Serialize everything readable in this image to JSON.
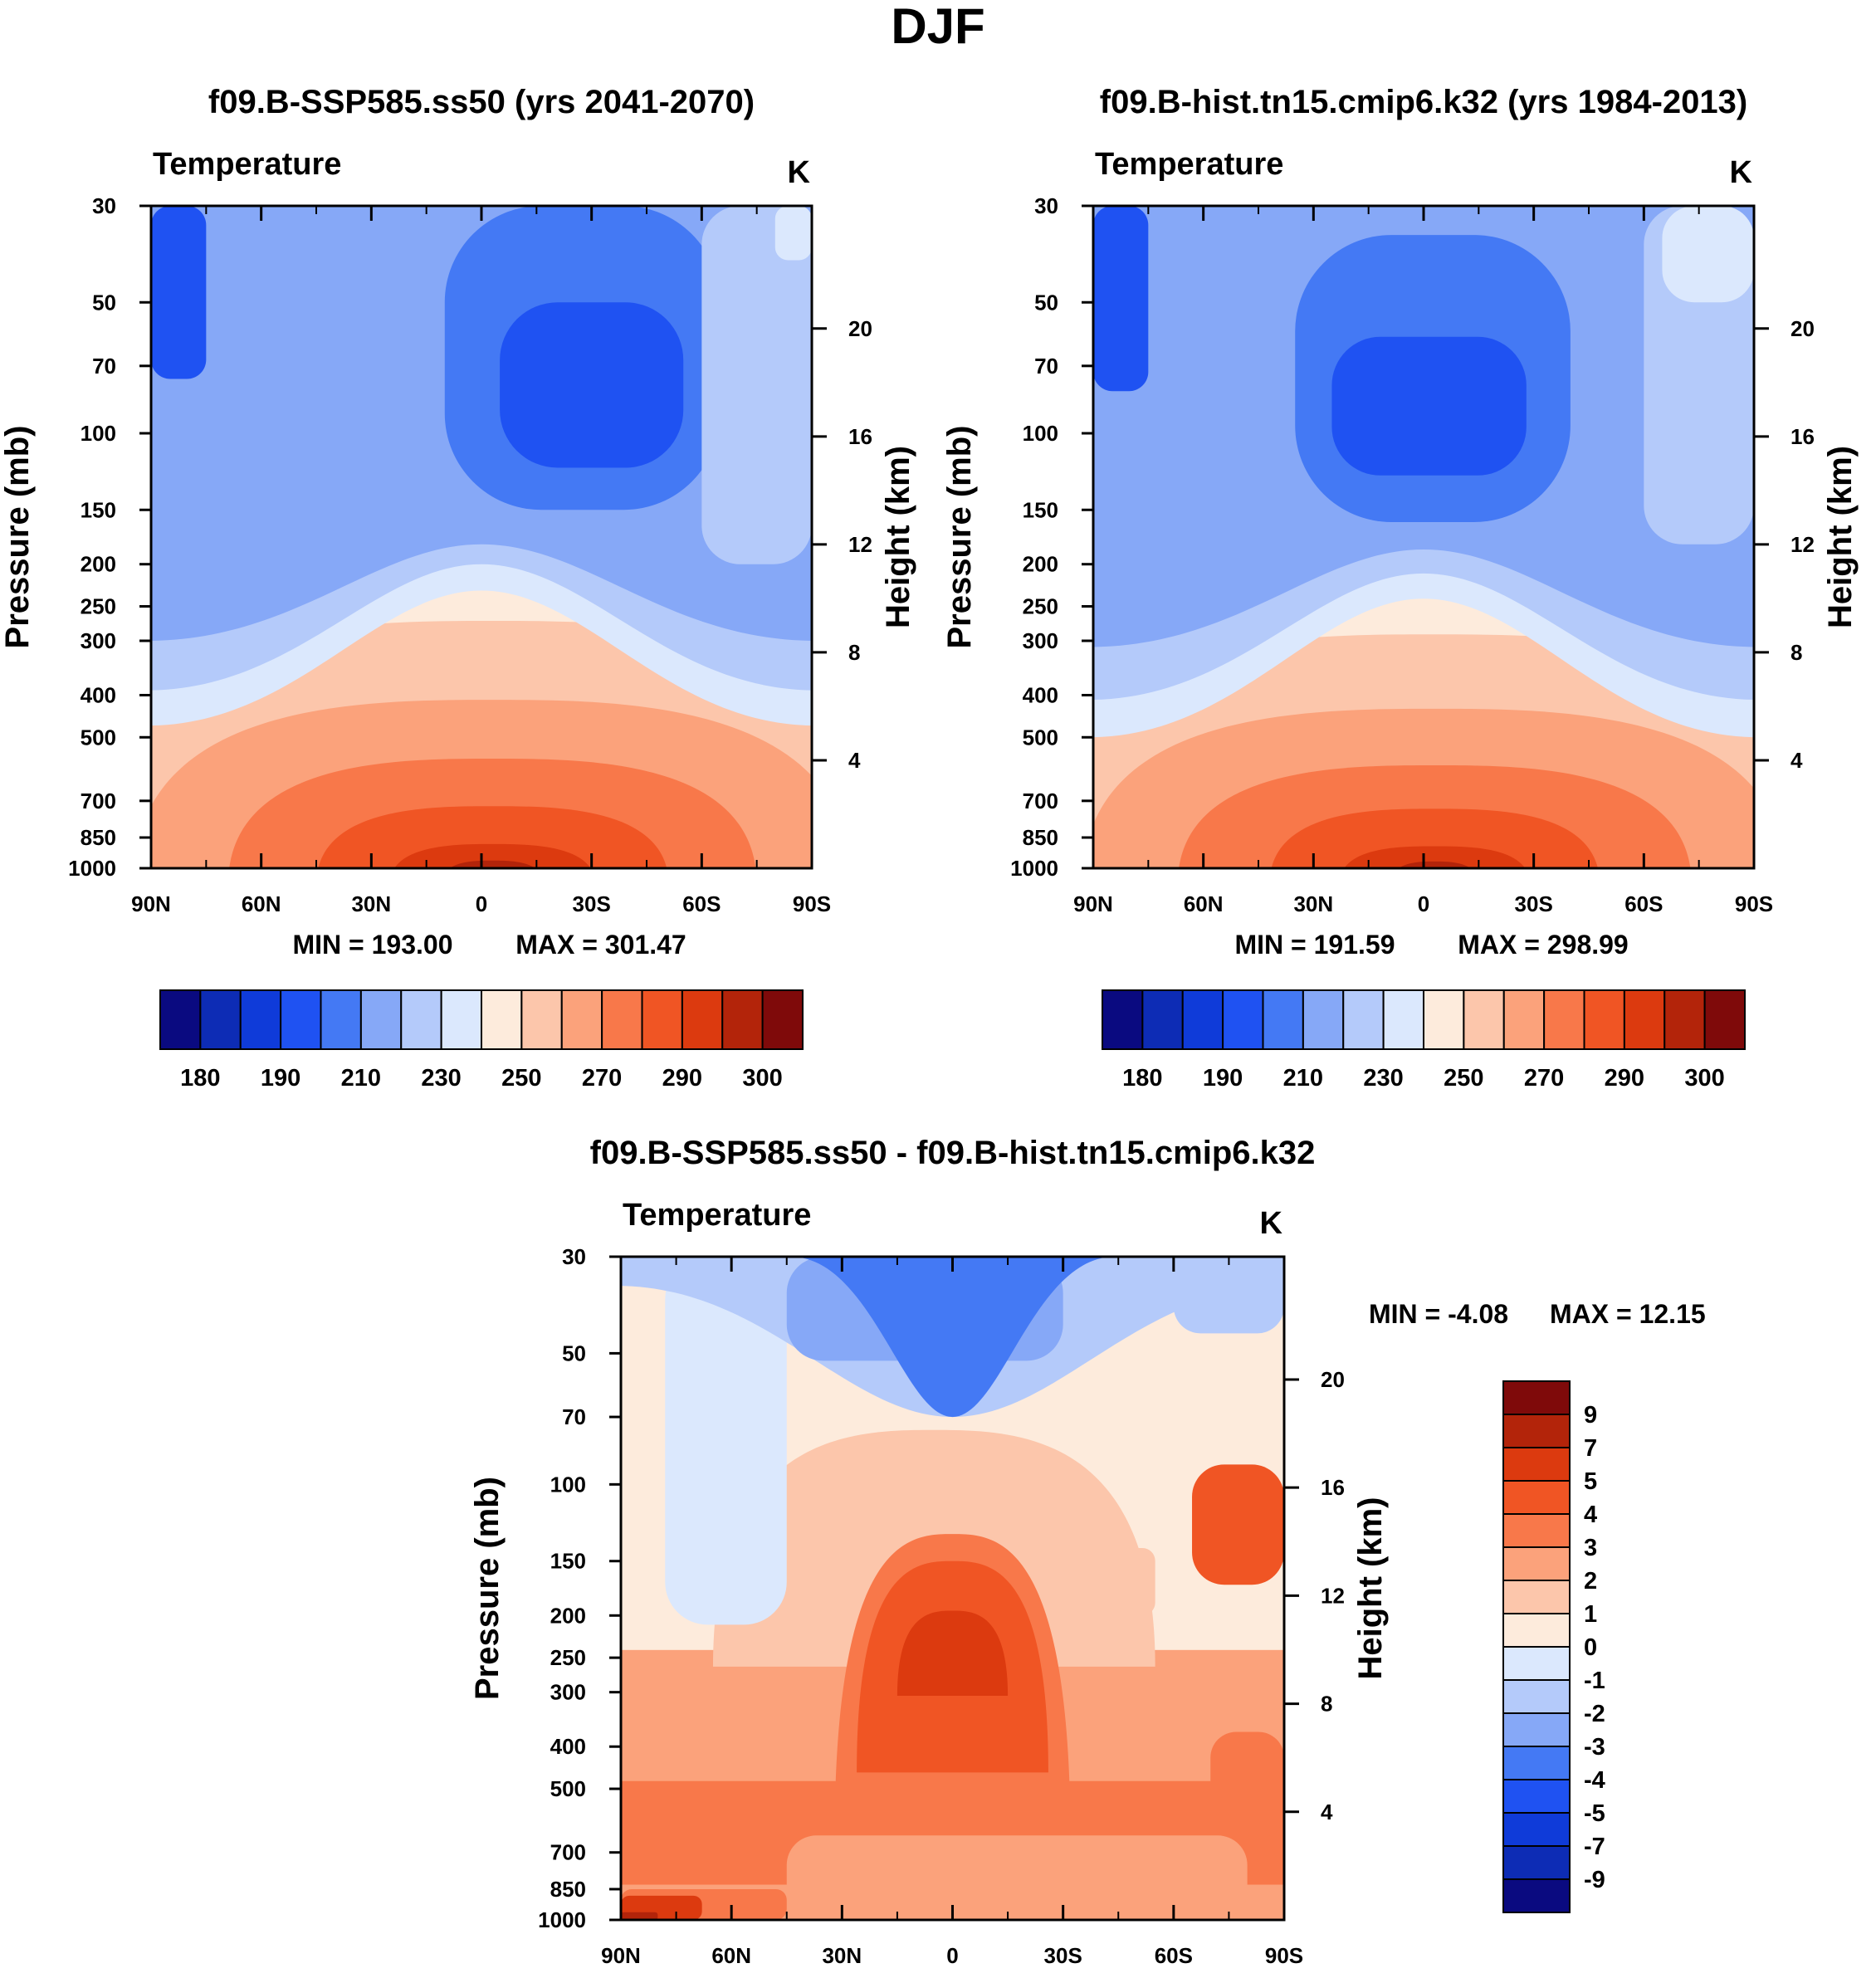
{
  "page_title": "DJF",
  "colors": {
    "temperature_levels": [
      "#0a0a80",
      "#0d2cb5",
      "#0f3bd9",
      "#1f52f2",
      "#4479f4",
      "#86a8f7",
      "#b4cafa",
      "#dbe8fd",
      "#fdebdc",
      "#fcc6ab",
      "#fba27b",
      "#f8784a",
      "#f05524",
      "#dc3a0f",
      "#b3240a",
      "#7f0a0a"
    ],
    "difference_levels": [
      "#0a0a80",
      "#0d2cb5",
      "#0f3bd9",
      "#1f52f2",
      "#4479f4",
      "#86a8f7",
      "#b4cafa",
      "#dbe8fd",
      "#fdebdc",
      "#fcc6ab",
      "#fba27b",
      "#f8784a",
      "#f05524",
      "#dc3a0f",
      "#b3240a",
      "#7f0a0a"
    ]
  },
  "chart_data": [
    {
      "type": "heatmap",
      "title": "f09.B-SSP585.ss50 (yrs 2041-2070)",
      "variable": "Temperature",
      "units": "K",
      "xlabel": "",
      "ylabel": "Pressure (mb)",
      "y2label": "Height (km)",
      "x_ticks": [
        "90N",
        "60N",
        "30N",
        "0",
        "30S",
        "60S",
        "90S"
      ],
      "x_values": [
        90,
        60,
        30,
        0,
        -30,
        -60,
        -90
      ],
      "y_ticks": [
        30,
        50,
        70,
        100,
        150,
        200,
        250,
        300,
        400,
        500,
        700,
        850,
        1000
      ],
      "y2_ticks": [
        20,
        16,
        12,
        8,
        4
      ],
      "ylim": [
        1000,
        30
      ],
      "min_label": "MIN = 193.00",
      "max_label": "MAX = 301.47",
      "min": 193.0,
      "max": 301.47,
      "colorbar_labels": [
        "180",
        "190",
        "210",
        "230",
        "250",
        "270",
        "290",
        "300"
      ],
      "regions": [
        {
          "level": 8,
          "kind": "band",
          "lat_min": -90,
          "lat_max": 90,
          "p_top": 30,
          "p_bot": 1000
        },
        {
          "level": 9,
          "kind": "dome",
          "center_lat": -3,
          "half_width": 118,
          "p_top": 270,
          "p_bot": 1000
        },
        {
          "level": 10,
          "kind": "dome",
          "center_lat": -3,
          "half_width": 98,
          "p_top": 410,
          "p_bot": 1000
        },
        {
          "level": 11,
          "kind": "dome",
          "center_lat": -3,
          "half_width": 72,
          "p_top": 560,
          "p_bot": 1000
        },
        {
          "level": 12,
          "kind": "dome",
          "center_lat": -3,
          "half_width": 48,
          "p_top": 720,
          "p_bot": 1000
        },
        {
          "level": 13,
          "kind": "dome",
          "center_lat": -3,
          "half_width": 28,
          "p_top": 880,
          "p_bot": 1000
        },
        {
          "level": 14,
          "kind": "dome",
          "center_lat": -3,
          "half_width": 14,
          "p_top": 960,
          "p_bot": 1000
        },
        {
          "level": 7,
          "kind": "cap",
          "p_bot_edge": 470,
          "p_bot_mid": 230
        },
        {
          "level": 6,
          "kind": "cap",
          "p_bot_edge": 390,
          "p_bot_mid": 200
        },
        {
          "level": 5,
          "kind": "cap",
          "p_bot_edge": 300,
          "p_bot_mid": 180
        },
        {
          "level": 4,
          "kind": "cell",
          "lat_min": 10,
          "lat_max": -65,
          "p_top": 30,
          "p_bot": 150
        },
        {
          "level": 3,
          "kind": "cell",
          "lat_min": -5,
          "lat_max": -55,
          "p_top": 50,
          "p_bot": 120
        },
        {
          "level": 3,
          "kind": "cell",
          "lat_min": 90,
          "lat_max": 75,
          "p_top": 30,
          "p_bot": 75
        },
        {
          "level": 6,
          "kind": "cell",
          "lat_min": -60,
          "lat_max": -90,
          "p_top": 30,
          "p_bot": 200
        },
        {
          "level": 7,
          "kind": "cell",
          "lat_min": -80,
          "lat_max": -90,
          "p_top": 30,
          "p_bot": 40
        }
      ]
    },
    {
      "type": "heatmap",
      "title": "f09.B-hist.tn15.cmip6.k32 (yrs 1984-2013)",
      "variable": "Temperature",
      "units": "K",
      "xlabel": "",
      "ylabel": "Pressure (mb)",
      "y2label": "Height (km)",
      "x_ticks": [
        "90N",
        "60N",
        "30N",
        "0",
        "30S",
        "60S",
        "90S"
      ],
      "x_values": [
        90,
        60,
        30,
        0,
        -30,
        -60,
        -90
      ],
      "y_ticks": [
        30,
        50,
        70,
        100,
        150,
        200,
        250,
        300,
        400,
        500,
        700,
        850,
        1000
      ],
      "y2_ticks": [
        20,
        16,
        12,
        8,
        4
      ],
      "ylim": [
        1000,
        30
      ],
      "min_label": "MIN = 191.59",
      "max_label": "MAX = 298.99",
      "min": 191.59,
      "max": 298.99,
      "colorbar_labels": [
        "180",
        "190",
        "210",
        "230",
        "250",
        "270",
        "290",
        "300"
      ],
      "regions": [
        {
          "level": 8,
          "kind": "band",
          "lat_min": -90,
          "lat_max": 90,
          "p_top": 30,
          "p_bot": 1000
        },
        {
          "level": 9,
          "kind": "dome",
          "center_lat": -3,
          "half_width": 118,
          "p_top": 290,
          "p_bot": 1000
        },
        {
          "level": 10,
          "kind": "dome",
          "center_lat": -3,
          "half_width": 96,
          "p_top": 430,
          "p_bot": 1000
        },
        {
          "level": 11,
          "kind": "dome",
          "center_lat": -3,
          "half_width": 70,
          "p_top": 580,
          "p_bot": 1000
        },
        {
          "level": 12,
          "kind": "dome",
          "center_lat": -3,
          "half_width": 45,
          "p_top": 730,
          "p_bot": 1000
        },
        {
          "level": 13,
          "kind": "dome",
          "center_lat": -3,
          "half_width": 26,
          "p_top": 890,
          "p_bot": 1000
        },
        {
          "level": 14,
          "kind": "dome",
          "center_lat": -3,
          "half_width": 12,
          "p_top": 965,
          "p_bot": 1000
        },
        {
          "level": 7,
          "kind": "cap",
          "p_bot_edge": 500,
          "p_bot_mid": 240
        },
        {
          "level": 6,
          "kind": "cap",
          "p_bot_edge": 410,
          "p_bot_mid": 210
        },
        {
          "level": 5,
          "kind": "cap",
          "p_bot_edge": 310,
          "p_bot_mid": 185
        },
        {
          "level": 4,
          "kind": "cell",
          "lat_min": 35,
          "lat_max": -40,
          "p_top": 35,
          "p_bot": 160
        },
        {
          "level": 3,
          "kind": "cell",
          "lat_min": 25,
          "lat_max": -28,
          "p_top": 60,
          "p_bot": 125
        },
        {
          "level": 3,
          "kind": "cell",
          "lat_min": 90,
          "lat_max": 75,
          "p_top": 30,
          "p_bot": 80
        },
        {
          "level": 6,
          "kind": "cell",
          "lat_min": -60,
          "lat_max": -90,
          "p_top": 30,
          "p_bot": 180
        },
        {
          "level": 7,
          "kind": "cell",
          "lat_min": -65,
          "lat_max": -90,
          "p_top": 30,
          "p_bot": 50
        }
      ]
    },
    {
      "type": "heatmap",
      "title": "f09.B-SSP585.ss50 - f09.B-hist.tn15.cmip6.k32",
      "variable": "Temperature",
      "units": "K",
      "xlabel": "",
      "ylabel": "Pressure (mb)",
      "y2label": "Height (km)",
      "x_ticks": [
        "90N",
        "60N",
        "30N",
        "0",
        "30S",
        "60S",
        "90S"
      ],
      "x_values": [
        90,
        60,
        30,
        0,
        -30,
        -60,
        -90
      ],
      "y_ticks": [
        30,
        50,
        70,
        100,
        150,
        200,
        250,
        300,
        400,
        500,
        700,
        850,
        1000
      ],
      "y2_ticks": [
        20,
        16,
        12,
        8,
        4
      ],
      "ylim": [
        1000,
        30
      ],
      "min_label": "MIN =  -4.08",
      "max_label": "MAX =  12.15",
      "min": -4.08,
      "max": 12.15,
      "colorbar_labels": [
        "9",
        "7",
        "5",
        "4",
        "3",
        "2",
        "1",
        "0",
        "-1",
        "-2",
        "-3",
        "-4",
        "-5",
        "-7",
        "-9"
      ],
      "regions": [
        {
          "level": 8,
          "kind": "band",
          "lat_min": -90,
          "lat_max": 90,
          "p_top": 30,
          "p_bot": 1000
        },
        {
          "level": 10,
          "kind": "band",
          "lat_min": -90,
          "lat_max": 90,
          "p_top": 240,
          "p_bot": 1000
        },
        {
          "level": 9,
          "kind": "dome",
          "center_lat": 5,
          "half_width": 60,
          "p_top": 75,
          "p_bot": 240
        },
        {
          "level": 11,
          "kind": "band",
          "lat_min": -90,
          "lat_max": 90,
          "p_top": 480,
          "p_bot": 830
        },
        {
          "level": 11,
          "kind": "dome",
          "center_lat": 0,
          "half_width": 32,
          "p_top": 130,
          "p_bot": 600
        },
        {
          "level": 12,
          "kind": "dome",
          "center_lat": 0,
          "half_width": 26,
          "p_top": 150,
          "p_bot": 420
        },
        {
          "level": 13,
          "kind": "dome",
          "center_lat": 0,
          "half_width": 15,
          "p_top": 195,
          "p_bot": 280
        },
        {
          "level": 10,
          "kind": "cell",
          "lat_min": 45,
          "lat_max": -80,
          "p_top": 640,
          "p_bot": 1000
        },
        {
          "level": 12,
          "kind": "cell",
          "lat_min": -65,
          "lat_max": -90,
          "p_top": 90,
          "p_bot": 170
        },
        {
          "level": 11,
          "kind": "cell",
          "lat_min": -70,
          "lat_max": -90,
          "p_top": 370,
          "p_bot": 650
        },
        {
          "level": 11,
          "kind": "cell",
          "lat_min": 90,
          "lat_max": 45,
          "p_top": 850,
          "p_bot": 1000
        },
        {
          "level": 13,
          "kind": "cell",
          "lat_min": 90,
          "lat_max": 68,
          "p_top": 880,
          "p_bot": 1000
        },
        {
          "level": 14,
          "kind": "cell",
          "lat_min": 90,
          "lat_max": 80,
          "p_top": 960,
          "p_bot": 1000
        },
        {
          "level": 7,
          "kind": "cell",
          "lat_min": 78,
          "lat_max": 45,
          "p_top": 30,
          "p_bot": 210
        },
        {
          "level": 6,
          "kind": "cap",
          "p_bot_edge": 35,
          "p_bot_mid": 70
        },
        {
          "level": 5,
          "kind": "cell",
          "lat_min": 45,
          "lat_max": -30,
          "p_top": 30,
          "p_bot": 52
        },
        {
          "level": 4,
          "kind": "dome_down",
          "center_lat": 0,
          "half_width": 22,
          "p_top": 30,
          "p_bot": 70
        },
        {
          "level": 6,
          "kind": "cell",
          "lat_min": -60,
          "lat_max": -90,
          "p_top": 30,
          "p_bot": 45
        },
        {
          "level": 9,
          "kind": "cell",
          "lat_min": -45,
          "lat_max": -55,
          "p_top": 140,
          "p_bot": 200
        }
      ]
    }
  ]
}
